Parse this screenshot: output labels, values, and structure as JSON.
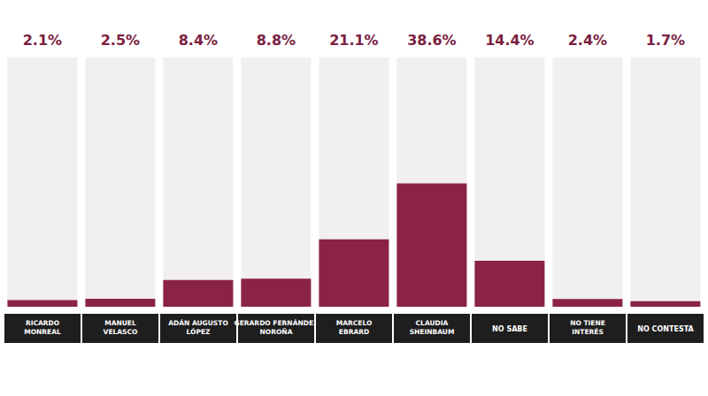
{
  "chart_data": {
    "type": "bar",
    "categories": [
      "RICARDO MONREAL",
      "MANUEL VELASCO",
      "ADÁN AUGUSTO LÓPEZ",
      "GERARDO FERNÁNDEZ NOROÑA",
      "MARCELO EBRARD",
      "CLAUDIA SHEINBAUM",
      "NO SABE",
      "NO TIENE INTERÉS",
      "NO CONTESTA"
    ],
    "values": [
      2.1,
      2.5,
      8.4,
      8.8,
      21.1,
      38.6,
      14.4,
      2.4,
      1.7
    ],
    "value_labels": [
      "2.1%",
      "2.5%",
      "8.4%",
      "8.8%",
      "21.1%",
      "38.6%",
      "14.4%",
      "2.4%",
      "1.7%"
    ],
    "color": "#8b2347",
    "ylim": [
      0,
      78
    ],
    "grid": false,
    "data_labels": true,
    "tick_labels": "x"
  }
}
